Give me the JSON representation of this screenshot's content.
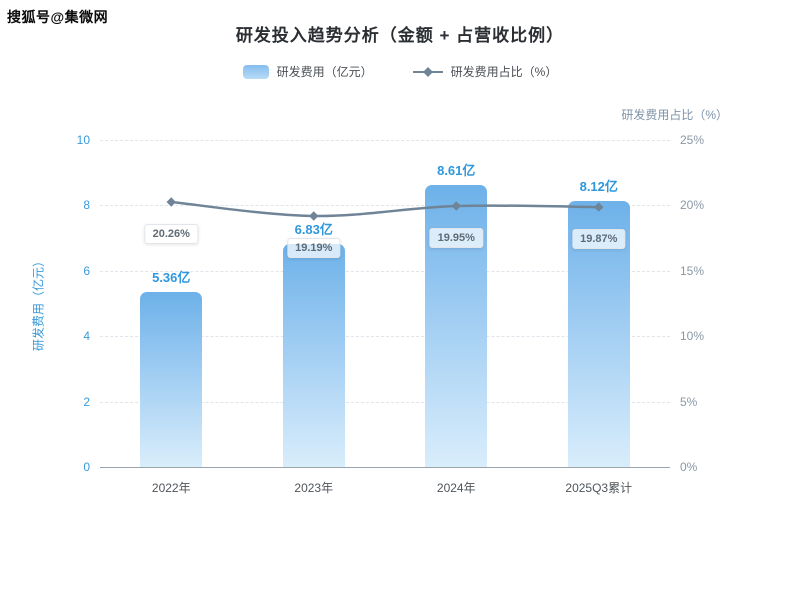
{
  "watermark": "搜狐号@集微网",
  "title": "研发投入趋势分析（金额 + 占营收比例）",
  "chart_data": {
    "type": "bar+line",
    "categories": [
      "2022年",
      "2023年",
      "2024年",
      "2025Q3累计"
    ],
    "series": [
      {
        "name": "研发费用（亿元）",
        "type": "bar",
        "axis": "left",
        "values": [
          5.36,
          6.83,
          8.61,
          8.12
        ],
        "labels": [
          "5.36亿",
          "6.83亿",
          "8.61亿",
          "8.12亿"
        ]
      },
      {
        "name": "研发费用占比（%）",
        "type": "line",
        "axis": "right",
        "values": [
          20.26,
          19.19,
          19.95,
          19.87
        ],
        "labels": [
          "20.26%",
          "19.19%",
          "19.95%",
          "19.87%"
        ]
      }
    ],
    "left_axis": {
      "title": "研发费用（亿元）",
      "min": 0,
      "max": 10,
      "ticks": [
        "0",
        "2",
        "4",
        "6",
        "8",
        "10"
      ]
    },
    "right_axis": {
      "title": "研发费用占比（%）",
      "min": 0,
      "max": 25,
      "ticks": [
        "0%",
        "5%",
        "10%",
        "15%",
        "20%",
        "25%"
      ]
    },
    "grid": "horizontal dashed",
    "legend_position": "top",
    "colors": {
      "bar_top": "#6db1e9",
      "bar_bottom": "#d9edfb",
      "line": "#6f8496",
      "bar_label": "#2f97dc",
      "left_axis_text": "#3a9ad9",
      "right_axis_text": "#8a98a5"
    }
  }
}
